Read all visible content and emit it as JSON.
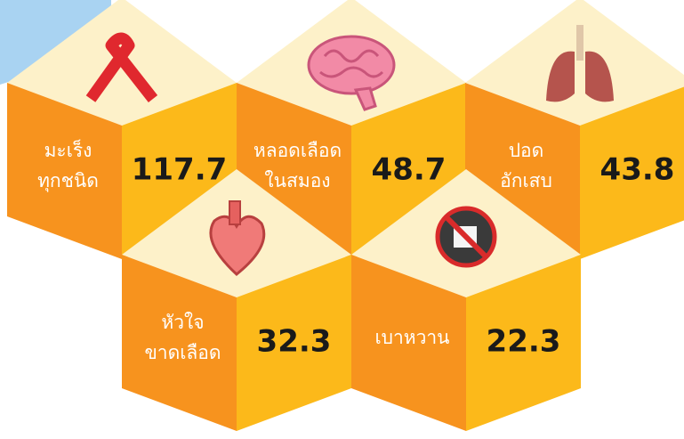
{
  "items": [
    {
      "label": [
        "มะเร็ง",
        "ทุกชนิด"
      ],
      "value": 117.7
    },
    {
      "label": [
        "หลอดเลือด",
        "ในสมอง"
      ],
      "value": 48.7
    },
    {
      "label": [
        "ปอด",
        "อักเสบ"
      ],
      "value": 43.8
    },
    {
      "label": [
        "หัวใจ",
        "ขาดเลือด"
      ],
      "value": 32.3
    },
    {
      "label": [
        "เบาหวาน"
      ],
      "value": 22.3
    }
  ]
}
